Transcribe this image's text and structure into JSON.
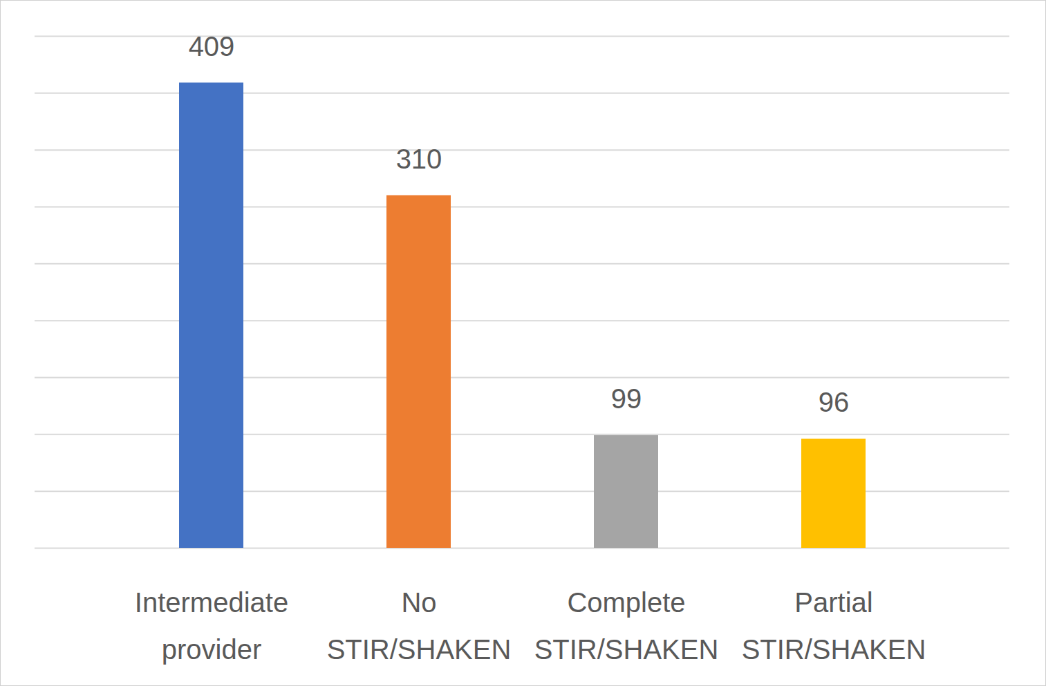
{
  "chart_data": {
    "type": "bar",
    "categories": [
      "Intermediate provider",
      "No STIR/SHAKEN",
      "Complete STIR/SHAKEN",
      "Partial STIR/SHAKEN"
    ],
    "values": [
      409,
      310,
      99,
      96
    ],
    "colors": [
      "#4472c4",
      "#ed7d31",
      "#a5a5a5",
      "#ffc000"
    ],
    "ylim": [
      0,
      450
    ],
    "yticks": [
      0,
      50,
      100,
      150,
      200,
      250,
      300,
      350,
      400,
      450
    ],
    "grid": true,
    "data_labels": true,
    "tick_labels": "x"
  }
}
